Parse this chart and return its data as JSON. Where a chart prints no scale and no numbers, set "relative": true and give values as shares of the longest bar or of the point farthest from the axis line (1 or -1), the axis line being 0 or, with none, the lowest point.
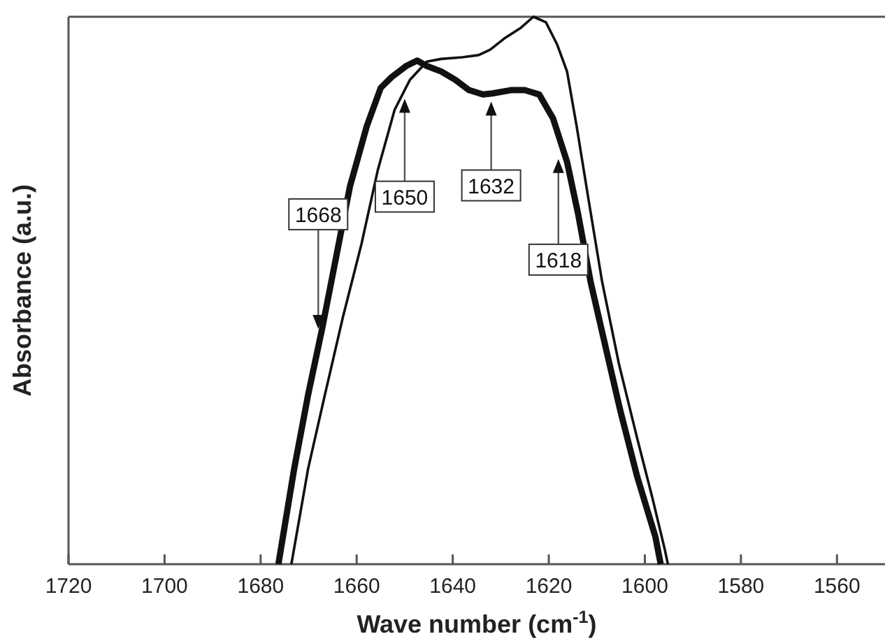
{
  "chart_data": {
    "type": "line",
    "relative": true,
    "xlabel": "Wave number (cm$^{-1}$)",
    "ylabel": "Absorbance (a.u.)",
    "xlim": [
      1720,
      1550
    ],
    "xticks": [
      1720,
      1700,
      1680,
      1660,
      1640,
      1620,
      1600,
      1580,
      1560
    ],
    "grid": false,
    "legend": false,
    "marker": "none",
    "line_style": "solid",
    "series": [
      {
        "color": "#111111",
        "x": [
          1676.3,
          1673,
          1670.1,
          1667.2,
          1664.3,
          1661.4,
          1657.9,
          1655,
          1652.7,
          1649.7,
          1647.4,
          1645.4,
          1642.4,
          1639.5,
          1636.6,
          1633.7,
          1631.7,
          1627.9,
          1625,
          1622,
          1619.1,
          1616.2,
          1613.9,
          1611.3,
          1608,
          1605.1,
          1601.6,
          1597.8,
          1596.7
        ],
        "values": [
          0,
          0.175,
          0.31,
          0.43,
          0.56,
          0.69,
          0.8,
          0.87,
          0.89,
          0.91,
          0.92,
          0.91,
          0.9,
          0.885,
          0.866,
          0.858,
          0.86,
          0.866,
          0.866,
          0.858,
          0.814,
          0.735,
          0.64,
          0.516,
          0.39,
          0.28,
          0.16,
          0.05,
          0
        ]
      },
      {
        "color": "#111111",
        "x": [
          1673.6,
          1670.1,
          1666.6,
          1662.9,
          1659,
          1655.6,
          1652.1,
          1648.9,
          1645.4,
          1642.4,
          1638,
          1634.6,
          1632.2,
          1629.3,
          1625.8,
          1623.2,
          1620.6,
          1618.3,
          1616.2,
          1614.2,
          1611.8,
          1608.9,
          1605.4,
          1601.6,
          1598.4,
          1595.8,
          1595.2
        ],
        "values": [
          0,
          0.175,
          0.31,
          0.45,
          0.585,
          0.72,
          0.83,
          0.885,
          0.918,
          0.923,
          0.926,
          0.93,
          0.94,
          0.96,
          0.98,
          1,
          0.99,
          0.95,
          0.9,
          0.8,
          0.67,
          0.516,
          0.366,
          0.23,
          0.12,
          0.025,
          0
        ]
      }
    ],
    "annotations": [
      {
        "text": "1668",
        "x": 1668,
        "y": 0.43
      },
      {
        "text": "1650",
        "x": 1650,
        "y": 0.85
      },
      {
        "text": "1632",
        "x": 1632,
        "y": 0.845
      },
      {
        "text": "1618",
        "x": 1618,
        "y": 0.74
      }
    ]
  }
}
